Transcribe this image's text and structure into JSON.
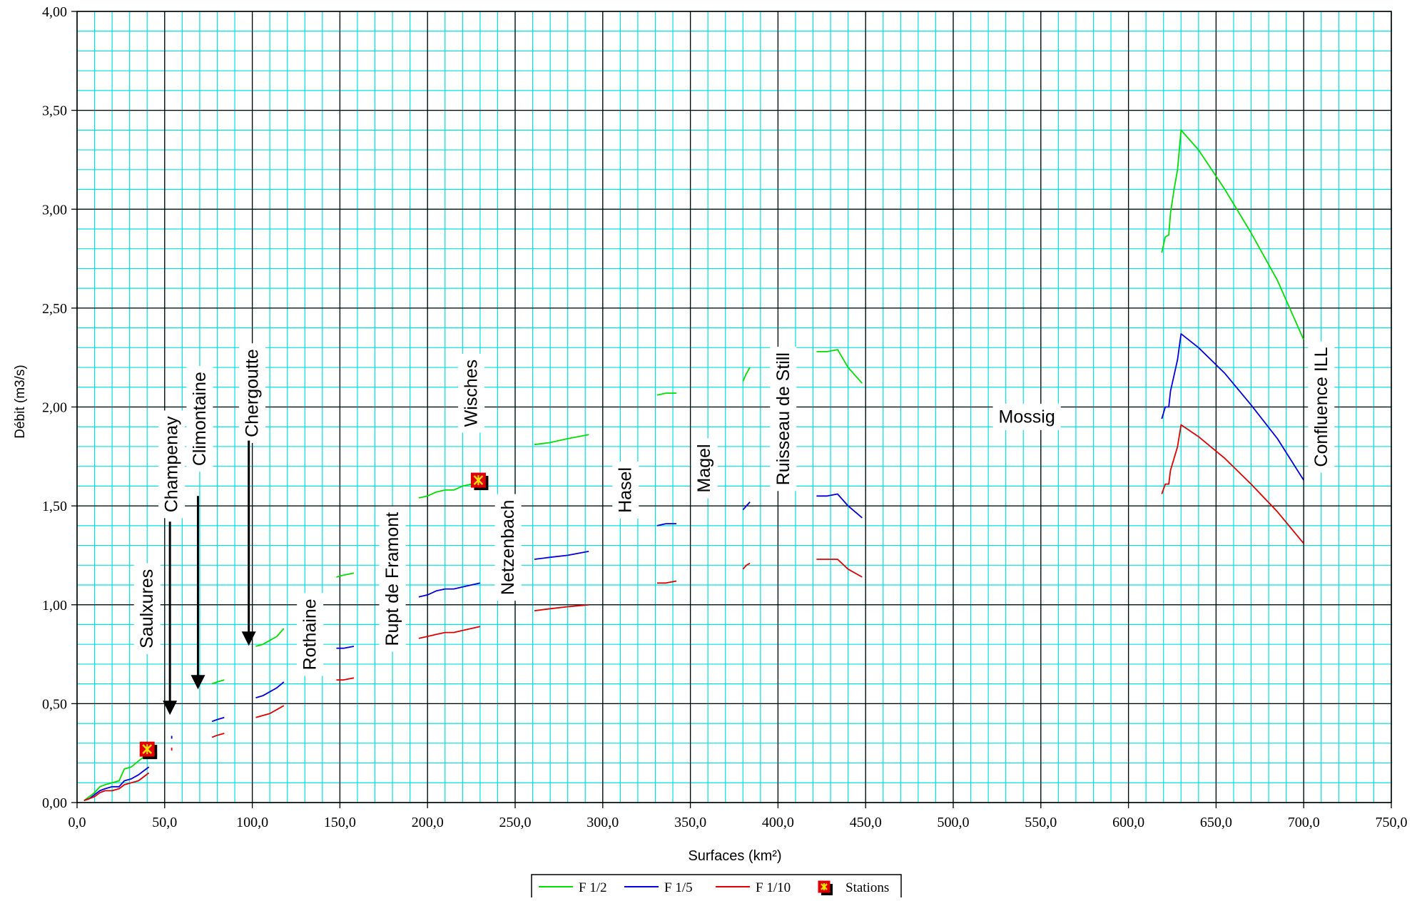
{
  "chart_data": {
    "type": "line",
    "title": "",
    "xlabel": "Surfaces (km²)",
    "ylabel": "Débit (m3/s)",
    "xlim": [
      0,
      750
    ],
    "ylim": [
      0,
      4
    ],
    "x_ticks": [
      "0,0",
      "50,0",
      "100,0",
      "150,0",
      "200,0",
      "250,0",
      "300,0",
      "350,0",
      "400,0",
      "450,0",
      "500,0",
      "550,0",
      "600,0",
      "650,0",
      "700,0",
      "750,0"
    ],
    "y_ticks": [
      "0,00",
      "0,50",
      "1,00",
      "1,50",
      "2,00",
      "2,50",
      "3,00",
      "3,50",
      "4,00"
    ],
    "grid": true,
    "legend_position": "bottom",
    "colors": {
      "F 1/2": "#00e000",
      "F 1/5": "#0000e0",
      "F 1/10": "#e00000",
      "grid_minor": "#00e0e0",
      "grid_major": "#000000"
    },
    "series": [
      {
        "name": "F 1/2",
        "segments": [
          [
            [
              4,
              0.01
            ],
            [
              7,
              0.03
            ],
            [
              10,
              0.05
            ],
            [
              13,
              0.08
            ],
            [
              16,
              0.09
            ],
            [
              20,
              0.1
            ],
            [
              24,
              0.11
            ],
            [
              27,
              0.17
            ],
            [
              31,
              0.18
            ],
            [
              35,
              0.21
            ],
            [
              38,
              0.23
            ],
            [
              41,
              0.25
            ]
          ],
          [
            [
              77,
              0.6
            ],
            [
              80,
              0.61
            ],
            [
              84,
              0.62
            ]
          ],
          [
            [
              102,
              0.79
            ],
            [
              106,
              0.8
            ],
            [
              110,
              0.82
            ],
            [
              114,
              0.84
            ],
            [
              118,
              0.88
            ]
          ],
          [
            [
              148,
              1.14
            ],
            [
              152,
              1.15
            ],
            [
              158,
              1.16
            ]
          ],
          [
            [
              195,
              1.54
            ],
            [
              200,
              1.55
            ],
            [
              205,
              1.57
            ],
            [
              210,
              1.58
            ],
            [
              215,
              1.58
            ],
            [
              220,
              1.6
            ],
            [
              225,
              1.61
            ],
            [
              230,
              1.62
            ]
          ],
          [
            [
              261,
              1.81
            ],
            [
              270,
              1.82
            ],
            [
              280,
              1.84
            ],
            [
              292,
              1.86
            ]
          ],
          [
            [
              331,
              2.06
            ],
            [
              336,
              2.07
            ],
            [
              342,
              2.07
            ]
          ],
          [
            [
              380,
              2.13
            ],
            [
              382,
              2.17
            ],
            [
              384,
              2.2
            ]
          ],
          [
            [
              422,
              2.28
            ],
            [
              428,
              2.28
            ],
            [
              434,
              2.29
            ],
            [
              440,
              2.2
            ],
            [
              448,
              2.12
            ]
          ],
          [
            [
              619,
              2.78
            ],
            [
              621,
              2.86
            ],
            [
              623,
              2.87
            ],
            [
              624,
              2.98
            ],
            [
              626,
              3.1
            ],
            [
              628,
              3.2
            ],
            [
              630,
              3.4
            ],
            [
              640,
              3.3
            ],
            [
              655,
              3.1
            ],
            [
              670,
              2.88
            ],
            [
              685,
              2.64
            ],
            [
              700,
              2.34
            ]
          ]
        ]
      },
      {
        "name": "F 1/5",
        "segments": [
          [
            [
              4,
              0.01
            ],
            [
              7,
              0.02
            ],
            [
              10,
              0.04
            ],
            [
              13,
              0.06
            ],
            [
              16,
              0.07
            ],
            [
              20,
              0.08
            ],
            [
              24,
              0.08
            ],
            [
              27,
              0.11
            ],
            [
              31,
              0.12
            ],
            [
              35,
              0.14
            ],
            [
              38,
              0.16
            ],
            [
              41,
              0.18
            ]
          ],
          [
            [
              54,
              0.33
            ]
          ],
          [
            [
              77,
              0.41
            ],
            [
              80,
              0.42
            ],
            [
              84,
              0.43
            ]
          ],
          [
            [
              102,
              0.53
            ],
            [
              106,
              0.54
            ],
            [
              110,
              0.56
            ],
            [
              114,
              0.58
            ],
            [
              118,
              0.61
            ]
          ],
          [
            [
              148,
              0.78
            ],
            [
              152,
              0.78
            ],
            [
              158,
              0.79
            ]
          ],
          [
            [
              195,
              1.04
            ],
            [
              200,
              1.05
            ],
            [
              205,
              1.07
            ],
            [
              210,
              1.08
            ],
            [
              215,
              1.08
            ],
            [
              220,
              1.09
            ],
            [
              225,
              1.1
            ],
            [
              230,
              1.11
            ]
          ],
          [
            [
              261,
              1.23
            ],
            [
              270,
              1.24
            ],
            [
              280,
              1.25
            ],
            [
              292,
              1.27
            ]
          ],
          [
            [
              331,
              1.4
            ],
            [
              336,
              1.41
            ],
            [
              342,
              1.41
            ]
          ],
          [
            [
              380,
              1.48
            ],
            [
              382,
              1.5
            ],
            [
              384,
              1.52
            ]
          ],
          [
            [
              422,
              1.55
            ],
            [
              428,
              1.55
            ],
            [
              434,
              1.56
            ],
            [
              440,
              1.5
            ],
            [
              448,
              1.44
            ]
          ],
          [
            [
              619,
              1.94
            ],
            [
              621,
              2.0
            ],
            [
              623,
              2.0
            ],
            [
              624,
              2.08
            ],
            [
              626,
              2.16
            ],
            [
              628,
              2.24
            ],
            [
              630,
              2.37
            ],
            [
              640,
              2.3
            ],
            [
              655,
              2.17
            ],
            [
              670,
              2.01
            ],
            [
              685,
              1.84
            ],
            [
              700,
              1.63
            ]
          ]
        ]
      },
      {
        "name": "F 1/10",
        "segments": [
          [
            [
              4,
              0.01
            ],
            [
              7,
              0.02
            ],
            [
              10,
              0.03
            ],
            [
              13,
              0.05
            ],
            [
              16,
              0.06
            ],
            [
              20,
              0.06
            ],
            [
              24,
              0.07
            ],
            [
              27,
              0.09
            ],
            [
              31,
              0.1
            ],
            [
              35,
              0.11
            ],
            [
              38,
              0.13
            ],
            [
              41,
              0.15
            ]
          ],
          [
            [
              54,
              0.27
            ]
          ],
          [
            [
              77,
              0.33
            ],
            [
              80,
              0.34
            ],
            [
              84,
              0.35
            ]
          ],
          [
            [
              102,
              0.43
            ],
            [
              106,
              0.44
            ],
            [
              110,
              0.45
            ],
            [
              114,
              0.47
            ],
            [
              118,
              0.49
            ]
          ],
          [
            [
              148,
              0.62
            ],
            [
              152,
              0.62
            ],
            [
              158,
              0.63
            ]
          ],
          [
            [
              195,
              0.83
            ],
            [
              200,
              0.84
            ],
            [
              205,
              0.85
            ],
            [
              210,
              0.86
            ],
            [
              215,
              0.86
            ],
            [
              220,
              0.87
            ],
            [
              225,
              0.88
            ],
            [
              230,
              0.89
            ]
          ],
          [
            [
              261,
              0.97
            ],
            [
              270,
              0.98
            ],
            [
              280,
              0.99
            ],
            [
              292,
              1.0
            ]
          ],
          [
            [
              331,
              1.11
            ],
            [
              336,
              1.11
            ],
            [
              342,
              1.12
            ]
          ],
          [
            [
              380,
              1.18
            ],
            [
              382,
              1.2
            ],
            [
              384,
              1.21
            ]
          ],
          [
            [
              422,
              1.23
            ],
            [
              428,
              1.23
            ],
            [
              434,
              1.23
            ],
            [
              440,
              1.18
            ],
            [
              448,
              1.14
            ]
          ],
          [
            [
              619,
              1.56
            ],
            [
              621,
              1.61
            ],
            [
              623,
              1.61
            ],
            [
              624,
              1.68
            ],
            [
              626,
              1.74
            ],
            [
              628,
              1.8
            ],
            [
              630,
              1.91
            ],
            [
              640,
              1.85
            ],
            [
              655,
              1.74
            ],
            [
              670,
              1.61
            ],
            [
              685,
              1.47
            ],
            [
              700,
              1.31
            ]
          ]
        ]
      }
    ],
    "stations": [
      {
        "x": 40,
        "y": 0.27
      },
      {
        "x": 229,
        "y": 1.63
      }
    ],
    "legend": [
      "F 1/2",
      "F 1/5",
      "F 1/10",
      "Stations"
    ],
    "annotations": [
      {
        "text": "Saulxures",
        "x": 40,
        "y": 0.98
      },
      {
        "text": "Champenay",
        "x": 54,
        "y": 1.71
      },
      {
        "text": "Climontaine",
        "x": 70,
        "y": 1.94
      },
      {
        "text": "Chergoutte",
        "x": 100,
        "y": 2.07
      },
      {
        "text": "Rothaine",
        "x": 133,
        "y": 0.85
      },
      {
        "text": "Rupt de Framont",
        "x": 180,
        "y": 1.13
      },
      {
        "text": "Wisches",
        "x": 225,
        "y": 2.07
      },
      {
        "text": "Netzenbach",
        "x": 246,
        "y": 1.29
      },
      {
        "text": "Hasel",
        "x": 313,
        "y": 1.58
      },
      {
        "text": "Magel",
        "x": 358,
        "y": 1.69
      },
      {
        "text": "Ruisseau de Still",
        "x": 403,
        "y": 1.94
      },
      {
        "text": "Mossig",
        "x": 542,
        "y": 1.95
      },
      {
        "text": "Confluence ILL",
        "x": 710,
        "y": 2.0
      }
    ],
    "arrows": [
      {
        "label": "Champenay",
        "x": 53,
        "y_from": 1.42,
        "y_to": 0.45
      },
      {
        "label": "Climontaine",
        "x": 69,
        "y_from": 1.55,
        "y_to": 0.58
      },
      {
        "label": "Chergoutte",
        "x": 98,
        "y_from": 1.83,
        "y_to": 0.8
      }
    ]
  }
}
